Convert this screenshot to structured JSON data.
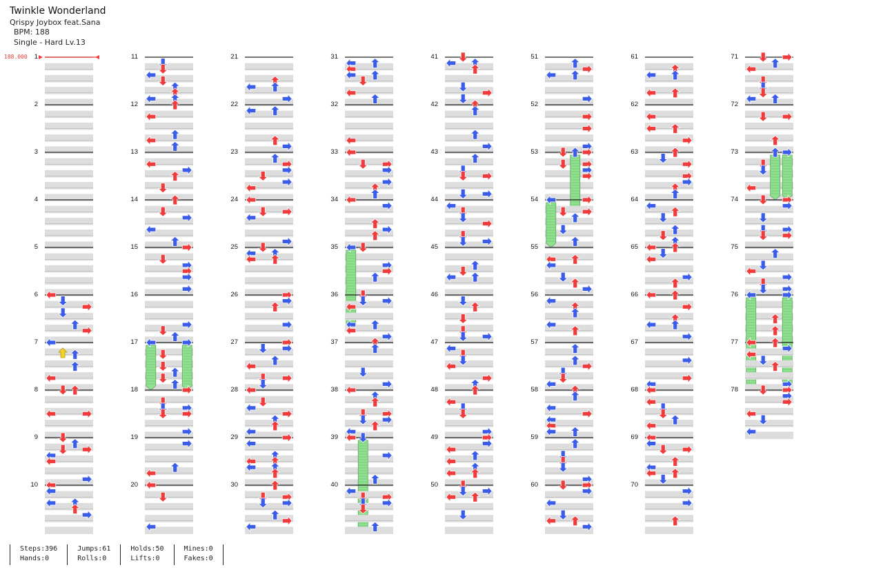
{
  "song": {
    "title": "Twinkle Wonderland",
    "artist": "Qrispy Joybox feat.Sana",
    "bpm_label": "BPM: 188",
    "difficulty_label": "Single - Hard  Lv.13",
    "bpm_marker": "188.000"
  },
  "colors": {
    "red_note": "#ef3b3b",
    "blue_note": "#3a5ce8",
    "hold_body": "#8fe08f",
    "mine": "#f2d22b",
    "shade": "#dddddd"
  },
  "stats": [
    {
      "label1": "Steps:396",
      "label2": "Hands:0"
    },
    {
      "label1": "Jumps:61",
      "label2": "Rolls:0"
    },
    {
      "label1": "Holds:50",
      "label2": "Lifts:0"
    },
    {
      "label1": "Mines:0",
      "label2": "Fakes:0"
    }
  ],
  "measures": [
    "1",
    "2",
    "3",
    "4",
    "5",
    "6",
    "7",
    "8",
    "9",
    "10",
    "11",
    "12",
    "13",
    "14",
    "15",
    "16",
    "17",
    "18",
    "19",
    "20",
    "21",
    "22",
    "23",
    "24",
    "25",
    "26",
    "27",
    "28",
    "29",
    "30",
    "31",
    "32",
    "33",
    "34",
    "35",
    "36",
    "37",
    "38",
    "39",
    "40",
    "41",
    "42",
    "43",
    "44",
    "45",
    "46",
    "47",
    "48",
    "49",
    "50",
    "51",
    "52",
    "53",
    "54",
    "55",
    "56",
    "57",
    "58",
    "59",
    "60",
    "61",
    "62",
    "63",
    "64",
    "65",
    "66",
    "67",
    "68",
    "69",
    "70",
    "71",
    "72",
    "73",
    "74",
    "75",
    "76",
    "77",
    "78"
  ],
  "chart_data": {
    "type": "table",
    "title": "Twinkle Wonderland",
    "bpm": 188,
    "lanes": [
      "L",
      "D",
      "U",
      "R"
    ],
    "total_measures": 78,
    "sample_notes": [
      {
        "m": 6,
        "b": 0,
        "lane": "L",
        "color": "red"
      },
      {
        "m": 6,
        "b": 0.125,
        "lane": "D",
        "color": "blue"
      },
      {
        "m": 6,
        "b": 0.25,
        "lane": "R",
        "color": "red"
      },
      {
        "m": 6,
        "b": 0.375,
        "lane": "D",
        "color": "blue"
      },
      {
        "m": 6,
        "b": 0.625,
        "lane": "U",
        "color": "blue"
      },
      {
        "m": 6,
        "b": 0.75,
        "lane": "R",
        "color": "red"
      },
      {
        "m": 7,
        "b": 0,
        "lane": "L",
        "color": "blue"
      },
      {
        "m": 7,
        "b": 0.25,
        "lane": "U",
        "color": "blue"
      },
      {
        "m": 7,
        "b": 0.5,
        "lane": "U",
        "color": "blue"
      },
      {
        "m": 7,
        "b": 0.75,
        "lane": "L",
        "color": "red"
      },
      {
        "m": 8,
        "b": 0,
        "lane": "D",
        "color": "red"
      },
      {
        "m": 8,
        "b": 0,
        "lane": "U",
        "color": "red"
      },
      {
        "m": 8,
        "b": 0.5,
        "lane": "L",
        "color": "red"
      },
      {
        "m": 8,
        "b": 0.5,
        "lane": "R",
        "color": "red"
      }
    ],
    "holds": [
      {
        "m": 17,
        "lanes": [
          "L",
          "R"
        ],
        "length_measures": 1
      },
      {
        "m": 35,
        "lanes": [
          "L"
        ],
        "length_measures": 1.75
      },
      {
        "m": 39,
        "lanes": [
          "D"
        ],
        "length_measures": 2
      },
      {
        "m": 53,
        "lanes": [
          "U"
        ],
        "length_measures": 1.25
      },
      {
        "m": 54,
        "lanes": [
          "L"
        ],
        "length_measures": 1
      },
      {
        "m": 73,
        "lanes": [
          "U",
          "R"
        ],
        "length_measures": 1
      },
      {
        "m": 76,
        "lanes": [
          "L",
          "R"
        ],
        "length_measures": 2
      }
    ]
  }
}
